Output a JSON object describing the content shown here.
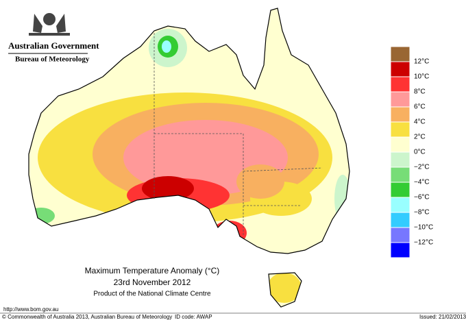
{
  "header": {
    "line1": "Australian Government",
    "line2": "Bureau of Meteorology"
  },
  "title": "Maximum Temperature Anomaly (°C)",
  "date": "23rd November 2012",
  "product": "Product of the National Climate Centre",
  "url": "http://www.bom.gov.au",
  "footer": {
    "copyright": "© Commonwealth of Australia 2013, Australian Bureau of Meteorology",
    "id_code": "ID code: AWAP",
    "issued": "Issued: 21/02/2013"
  },
  "legend": {
    "colors": [
      "#996633",
      "#cc0000",
      "#ff3333",
      "#ff9999",
      "#f8b060",
      "#f8e040",
      "#ffffd0",
      "#ccf5cc",
      "#77dd77",
      "#33cc33",
      "#99ffff",
      "#33ccff",
      "#7777ff",
      "#0000ff"
    ],
    "labels": [
      "12°C",
      "10°C",
      "8°C",
      "6°C",
      "4°C",
      "2°C",
      "0°C",
      "−2°C",
      "−4°C",
      "−6°C",
      "−8°C",
      "−10°C",
      "−12°C"
    ]
  }
}
